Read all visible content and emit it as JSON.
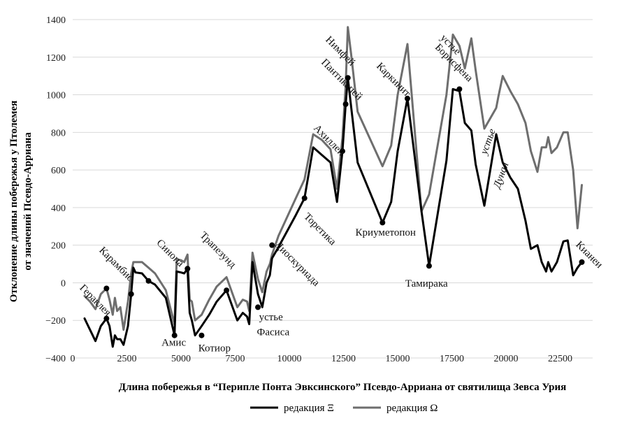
{
  "chart_data": {
    "type": "line",
    "title": "",
    "xlabel": "Длина побережья в “Перипле Понта Эвксинского” Псевдо-Арриана от святилища Зевса Урия",
    "ylabel_lines": [
      "Отклонение длины побережья у Птолемея",
      "от значений Псевдо-Арриана"
    ],
    "xlim": [
      0,
      24000
    ],
    "ylim": [
      -400,
      1400
    ],
    "xticks": [
      0,
      2500,
      5000,
      7500,
      10000,
      12500,
      15000,
      17500,
      20000,
      22500
    ],
    "yticks": [
      -400,
      -200,
      0,
      200,
      400,
      600,
      800,
      1000,
      1200,
      1400
    ],
    "xtick_labels": [
      "0",
      "2500",
      "5000",
      "7500",
      "10000",
      "12500",
      "15000",
      "17500",
      "20000",
      "22500"
    ],
    "ytick_labels": [
      "−400",
      "−200",
      "0",
      "200",
      "400",
      "600",
      "800",
      "1000",
      "1200",
      "1400"
    ],
    "grid": "horizontal",
    "legend_position": "bottom",
    "colors": {
      "xi": "#000000",
      "omega": "#6e6e6e",
      "grid": "#d9d9d9"
    },
    "series": [
      {
        "name": "редакция Ξ",
        "color": "#000000",
        "x": [
          550,
          800,
          1050,
          1300,
          1560,
          1700,
          1850,
          1950,
          2050,
          2200,
          2350,
          2550,
          2700,
          2800,
          2900,
          3200,
          3500,
          3800,
          4300,
          4700,
          4800,
          5000,
          5150,
          5300,
          5400,
          5500,
          5650,
          5950,
          6300,
          6650,
          7100,
          7600,
          7850,
          8050,
          8150,
          8300,
          8550,
          8750,
          8950,
          9100,
          9200,
          9500,
          10300,
          10700,
          11100,
          11500,
          11900,
          12200,
          12450,
          12600,
          12700,
          12850,
          13150,
          14300,
          14700,
          15000,
          15450,
          16100,
          16450,
          17250,
          17550,
          17850,
          18100,
          18400,
          18600,
          19000,
          19550,
          19850,
          20200,
          20550,
          20900,
          21150,
          21450,
          21650,
          21850,
          21950,
          22100,
          22350,
          22650,
          22850,
          23100,
          23300,
          23500
        ],
        "values": [
          -190,
          -250,
          -310,
          -230,
          -190,
          -230,
          -340,
          -280,
          -300,
          -300,
          -330,
          -230,
          -60,
          80,
          55,
          50,
          10,
          -10,
          -80,
          -280,
          60,
          55,
          50,
          75,
          -160,
          -200,
          -280,
          -230,
          -170,
          -100,
          -40,
          -200,
          -160,
          -180,
          -220,
          110,
          -60,
          -130,
          0,
          40,
          130,
          190,
          360,
          450,
          720,
          680,
          640,
          430,
          700,
          950,
          1090,
          940,
          640,
          320,
          430,
          700,
          980,
          380,
          90,
          650,
          1030,
          1020,
          850,
          810,
          630,
          410,
          790,
          640,
          560,
          500,
          330,
          180,
          200,
          110,
          60,
          110,
          60,
          110,
          220,
          225,
          40,
          80,
          110
        ]
      },
      {
        "name": "редакция Ω",
        "color": "#6e6e6e",
        "x": [
          550,
          800,
          1050,
          1300,
          1560,
          1700,
          1850,
          1950,
          2050,
          2200,
          2350,
          2550,
          2700,
          2800,
          2900,
          3200,
          3500,
          3800,
          4300,
          4700,
          4800,
          5000,
          5150,
          5300,
          5400,
          5500,
          5650,
          5950,
          6300,
          6650,
          7100,
          7600,
          7850,
          8050,
          8150,
          8300,
          8550,
          8750,
          8950,
          9100,
          9200,
          9500,
          10300,
          10700,
          11100,
          11500,
          11900,
          12200,
          12450,
          12600,
          12700,
          12850,
          13150,
          14300,
          14700,
          15000,
          15450,
          16100,
          16450,
          17250,
          17550,
          17850,
          18100,
          18400,
          18600,
          19000,
          19550,
          19650,
          19850,
          20200,
          20550,
          20900,
          21150,
          21450,
          21650,
          21850,
          21950,
          22100,
          22350,
          22650,
          22850,
          23100,
          23300,
          23500
        ],
        "values": [
          -70,
          -100,
          -140,
          -60,
          -30,
          -90,
          -170,
          -80,
          -150,
          -130,
          -250,
          -100,
          50,
          110,
          110,
          110,
          80,
          50,
          -40,
          -220,
          125,
          120,
          110,
          150,
          -90,
          -100,
          -200,
          -170,
          -90,
          -20,
          30,
          -130,
          -90,
          -100,
          -150,
          160,
          20,
          -50,
          60,
          100,
          150,
          250,
          450,
          550,
          790,
          760,
          710,
          500,
          770,
          1050,
          1360,
          1220,
          910,
          620,
          730,
          1000,
          1270,
          380,
          470,
          1000,
          1320,
          1260,
          1140,
          1300,
          1130,
          820,
          930,
          990,
          1100,
          1020,
          950,
          850,
          700,
          590,
          720,
          720,
          775,
          690,
          720,
          800,
          800,
          600,
          290,
          520
        ]
      }
    ],
    "markers": [
      {
        "series": 0,
        "x": 1560,
        "y": -190
      },
      {
        "series": 0,
        "x": 1560,
        "y": -30
      },
      {
        "series": 0,
        "x": 2700,
        "y": -60
      },
      {
        "series": 0,
        "x": 3500,
        "y": 10
      },
      {
        "series": 0,
        "x": 4700,
        "y": -280
      },
      {
        "series": 0,
        "x": 5300,
        "y": 75
      },
      {
        "series": 0,
        "x": 5950,
        "y": -280
      },
      {
        "series": 0,
        "x": 7100,
        "y": -40
      },
      {
        "series": 0,
        "x": 8550,
        "y": -130
      },
      {
        "series": 0,
        "x": 9200,
        "y": 200
      },
      {
        "series": 0,
        "x": 10700,
        "y": 450
      },
      {
        "series": 0,
        "x": 12450,
        "y": 700
      },
      {
        "series": 0,
        "x": 12600,
        "y": 950
      },
      {
        "series": 0,
        "x": 12700,
        "y": 1090
      },
      {
        "series": 0,
        "x": 14300,
        "y": 320
      },
      {
        "series": 0,
        "x": 15450,
        "y": 980
      },
      {
        "series": 0,
        "x": 16450,
        "y": 90
      },
      {
        "series": 0,
        "x": 17850,
        "y": 1030
      },
      {
        "series": 0,
        "x": 23500,
        "y": 110
      }
    ],
    "annotations": [
      {
        "text": "Гераклея",
        "x": 300,
        "y": -30,
        "rotate": 45,
        "italic": false
      },
      {
        "text": "Карамбис",
        "x": 1200,
        "y": 170,
        "rotate": 45,
        "italic": false
      },
      {
        "text": "Синопа",
        "x": 3850,
        "y": 210,
        "rotate": 45,
        "italic": false
      },
      {
        "text": "Амис",
        "x": 4100,
        "y": -335,
        "rotate": 0,
        "italic": false
      },
      {
        "text": "Трапезунд",
        "x": 5850,
        "y": 250,
        "rotate": 45,
        "italic": false
      },
      {
        "text": "Котиор",
        "x": 5800,
        "y": -365,
        "rotate": 0,
        "italic": false
      },
      {
        "text": "устье",
        "x": 8600,
        "y": -200,
        "rotate": 0,
        "italic": false
      },
      {
        "text": "Фасиса",
        "x": 8500,
        "y": -280,
        "rotate": 0,
        "italic": false
      },
      {
        "text": "Диоскуриада",
        "x": 9300,
        "y": 200,
        "rotate": 45,
        "italic": false
      },
      {
        "text": "Торетика",
        "x": 10650,
        "y": 350,
        "rotate": 45,
        "italic": false
      },
      {
        "text": "Ахиллей",
        "x": 11100,
        "y": 820,
        "rotate": 45,
        "italic": false
      },
      {
        "text": "Нимфей",
        "x": 11650,
        "y": 1290,
        "rotate": 45,
        "italic": false
      },
      {
        "text": "Пантикапей",
        "x": 11450,
        "y": 1170,
        "rotate": 45,
        "italic": false
      },
      {
        "text": "Криуметопон",
        "x": 13050,
        "y": 250,
        "rotate": 0,
        "italic": false
      },
      {
        "text": "Каркинит",
        "x": 14000,
        "y": 1150,
        "rotate": 45,
        "italic": false
      },
      {
        "text": "Тамирака",
        "x": 15350,
        "y": -20,
        "rotate": 0,
        "italic": false
      },
      {
        "text": "устье",
        "x": 16950,
        "y": 1300,
        "rotate": 45,
        "italic": false
      },
      {
        "text": "Борисфена",
        "x": 16700,
        "y": 1250,
        "rotate": 45,
        "italic": false
      },
      {
        "text": "устье",
        "x": 19100,
        "y": 680,
        "rotate": -70,
        "italic": true
      },
      {
        "text": "Дуная",
        "x": 19700,
        "y": 500,
        "rotate": -70,
        "italic": true
      },
      {
        "text": "Кианеи",
        "x": 23200,
        "y": 200,
        "rotate": 45,
        "italic": false
      }
    ]
  }
}
